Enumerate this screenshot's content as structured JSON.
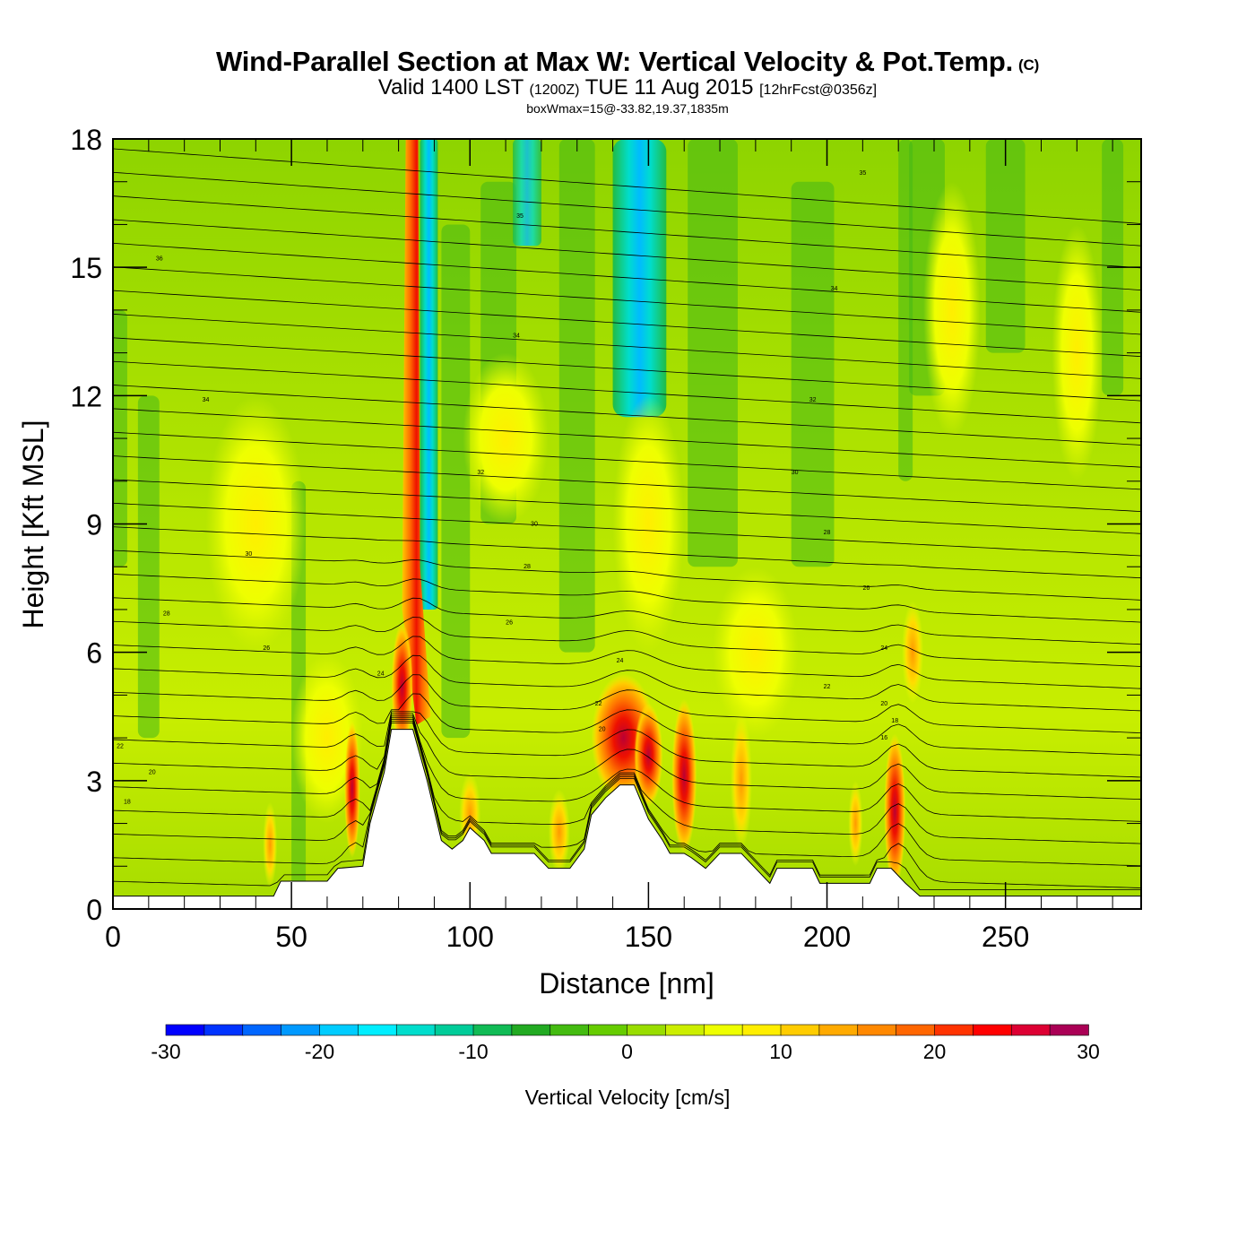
{
  "header": {
    "title": "Wind-Parallel Section at Max W: Vertical Velocity & Pot.Temp.",
    "copyright_mark": "(C)",
    "valid_prefix": "Valid 1400 LST",
    "valid_zulu": "(1200Z)",
    "valid_date": "TUE 11 Aug 2015",
    "forecast_info": "[12hrFcst@0356z]",
    "box_info": "boxWmax=15@-33.82,19.37,1835m"
  },
  "chart_data": {
    "type": "heatmap",
    "xlabel": "Distance [nm]",
    "ylabel": "Height [Kft MSL]",
    "xlim": [
      0,
      288
    ],
    "ylim": [
      0,
      18
    ],
    "x_ticks": [
      0,
      50,
      100,
      150,
      200,
      250
    ],
    "y_ticks": [
      0,
      3,
      6,
      9,
      12,
      15,
      18
    ],
    "colorbar": {
      "label": "Vertical Velocity [cm/s]",
      "range": [
        -30,
        30
      ],
      "tick_values": [
        -30,
        -20,
        -10,
        0,
        10,
        20,
        30
      ],
      "colors": [
        "#0000ff",
        "#0033ff",
        "#0066ff",
        "#0099ff",
        "#00ccff",
        "#00eeff",
        "#00ddcc",
        "#00cc99",
        "#11bb55",
        "#22aa22",
        "#44bb11",
        "#66cc00",
        "#99dd00",
        "#ccee00",
        "#eeff00",
        "#ffee00",
        "#ffcc00",
        "#ffaa00",
        "#ff8800",
        "#ff6600",
        "#ff3300",
        "#ff0000",
        "#dd0033",
        "#aa0055"
      ]
    },
    "terrain": [
      [
        0,
        0.3
      ],
      [
        45,
        0.3
      ],
      [
        47,
        0.65
      ],
      [
        50,
        0.65
      ],
      [
        56,
        0.65
      ],
      [
        60,
        0.65
      ],
      [
        63,
        0.95
      ],
      [
        70,
        1.0
      ],
      [
        72,
        2.0
      ],
      [
        76,
        3.2
      ],
      [
        78,
        4.2
      ],
      [
        84,
        4.2
      ],
      [
        86,
        3.6
      ],
      [
        88,
        3.0
      ],
      [
        90,
        2.3
      ],
      [
        92,
        1.6
      ],
      [
        95,
        1.4
      ],
      [
        98,
        1.6
      ],
      [
        100,
        1.9
      ],
      [
        104,
        1.6
      ],
      [
        106,
        1.3
      ],
      [
        112,
        1.3
      ],
      [
        118,
        1.3
      ],
      [
        122,
        0.95
      ],
      [
        128,
        0.95
      ],
      [
        132,
        1.4
      ],
      [
        134,
        2.2
      ],
      [
        138,
        2.6
      ],
      [
        142,
        2.9
      ],
      [
        146,
        2.9
      ],
      [
        148,
        2.5
      ],
      [
        150,
        2.1
      ],
      [
        154,
        1.6
      ],
      [
        156,
        1.3
      ],
      [
        160,
        1.3
      ],
      [
        162,
        1.2
      ],
      [
        166,
        0.95
      ],
      [
        170,
        1.3
      ],
      [
        176,
        1.3
      ],
      [
        180,
        0.95
      ],
      [
        184,
        0.6
      ],
      [
        186,
        0.95
      ],
      [
        190,
        0.95
      ],
      [
        196,
        0.95
      ],
      [
        198,
        0.6
      ],
      [
        206,
        0.6
      ],
      [
        212,
        0.6
      ],
      [
        214,
        0.95
      ],
      [
        218,
        0.95
      ],
      [
        222,
        0.6
      ],
      [
        226,
        0.3
      ],
      [
        288,
        0.3
      ]
    ],
    "potential_temperature_labels": [
      {
        "x": 13,
        "y": 15.2,
        "text": "36"
      },
      {
        "x": 26,
        "y": 11.9,
        "text": "34"
      },
      {
        "x": 114,
        "y": 16.2,
        "text": "35"
      },
      {
        "x": 113,
        "y": 13.4,
        "text": "34"
      },
      {
        "x": 103,
        "y": 10.2,
        "text": "32"
      },
      {
        "x": 118,
        "y": 9.0,
        "text": "30"
      },
      {
        "x": 116,
        "y": 8.0,
        "text": "28"
      },
      {
        "x": 111,
        "y": 6.7,
        "text": "26"
      },
      {
        "x": 38,
        "y": 8.3,
        "text": "30"
      },
      {
        "x": 15,
        "y": 6.9,
        "text": "28"
      },
      {
        "x": 43,
        "y": 6.1,
        "text": "26"
      },
      {
        "x": 75,
        "y": 5.5,
        "text": "24"
      },
      {
        "x": 2,
        "y": 3.8,
        "text": "22"
      },
      {
        "x": 11,
        "y": 3.2,
        "text": "20"
      },
      {
        "x": 4,
        "y": 2.5,
        "text": "18"
      },
      {
        "x": 142,
        "y": 5.8,
        "text": "24"
      },
      {
        "x": 136,
        "y": 4.8,
        "text": "22"
      },
      {
        "x": 137,
        "y": 4.2,
        "text": "20"
      },
      {
        "x": 210,
        "y": 17.2,
        "text": "35"
      },
      {
        "x": 202,
        "y": 14.5,
        "text": "34"
      },
      {
        "x": 196,
        "y": 11.9,
        "text": "32"
      },
      {
        "x": 191,
        "y": 10.2,
        "text": "30"
      },
      {
        "x": 200,
        "y": 8.8,
        "text": "28"
      },
      {
        "x": 211,
        "y": 7.5,
        "text": "26"
      },
      {
        "x": 200,
        "y": 5.2,
        "text": "22"
      },
      {
        "x": 216,
        "y": 6.1,
        "text": "24"
      },
      {
        "x": 216,
        "y": 4.8,
        "text": "20"
      },
      {
        "x": 219,
        "y": 4.4,
        "text": "18"
      },
      {
        "x": 216,
        "y": 4.0,
        "text": "16"
      }
    ]
  }
}
